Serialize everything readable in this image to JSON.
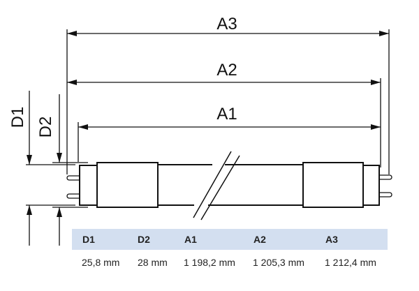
{
  "dimension_labels": {
    "a3": "A3",
    "a2": "A2",
    "a1": "A1",
    "d1": "D1",
    "d2": "D2"
  },
  "table": {
    "headers": [
      "D1",
      "D2",
      "A1",
      "A2",
      "A3"
    ],
    "values": [
      "25,8 mm",
      "28 mm",
      "1 198,2 mm",
      "1 205,3 mm",
      "1 212,4 mm"
    ],
    "header_color": "#d3dff0"
  }
}
